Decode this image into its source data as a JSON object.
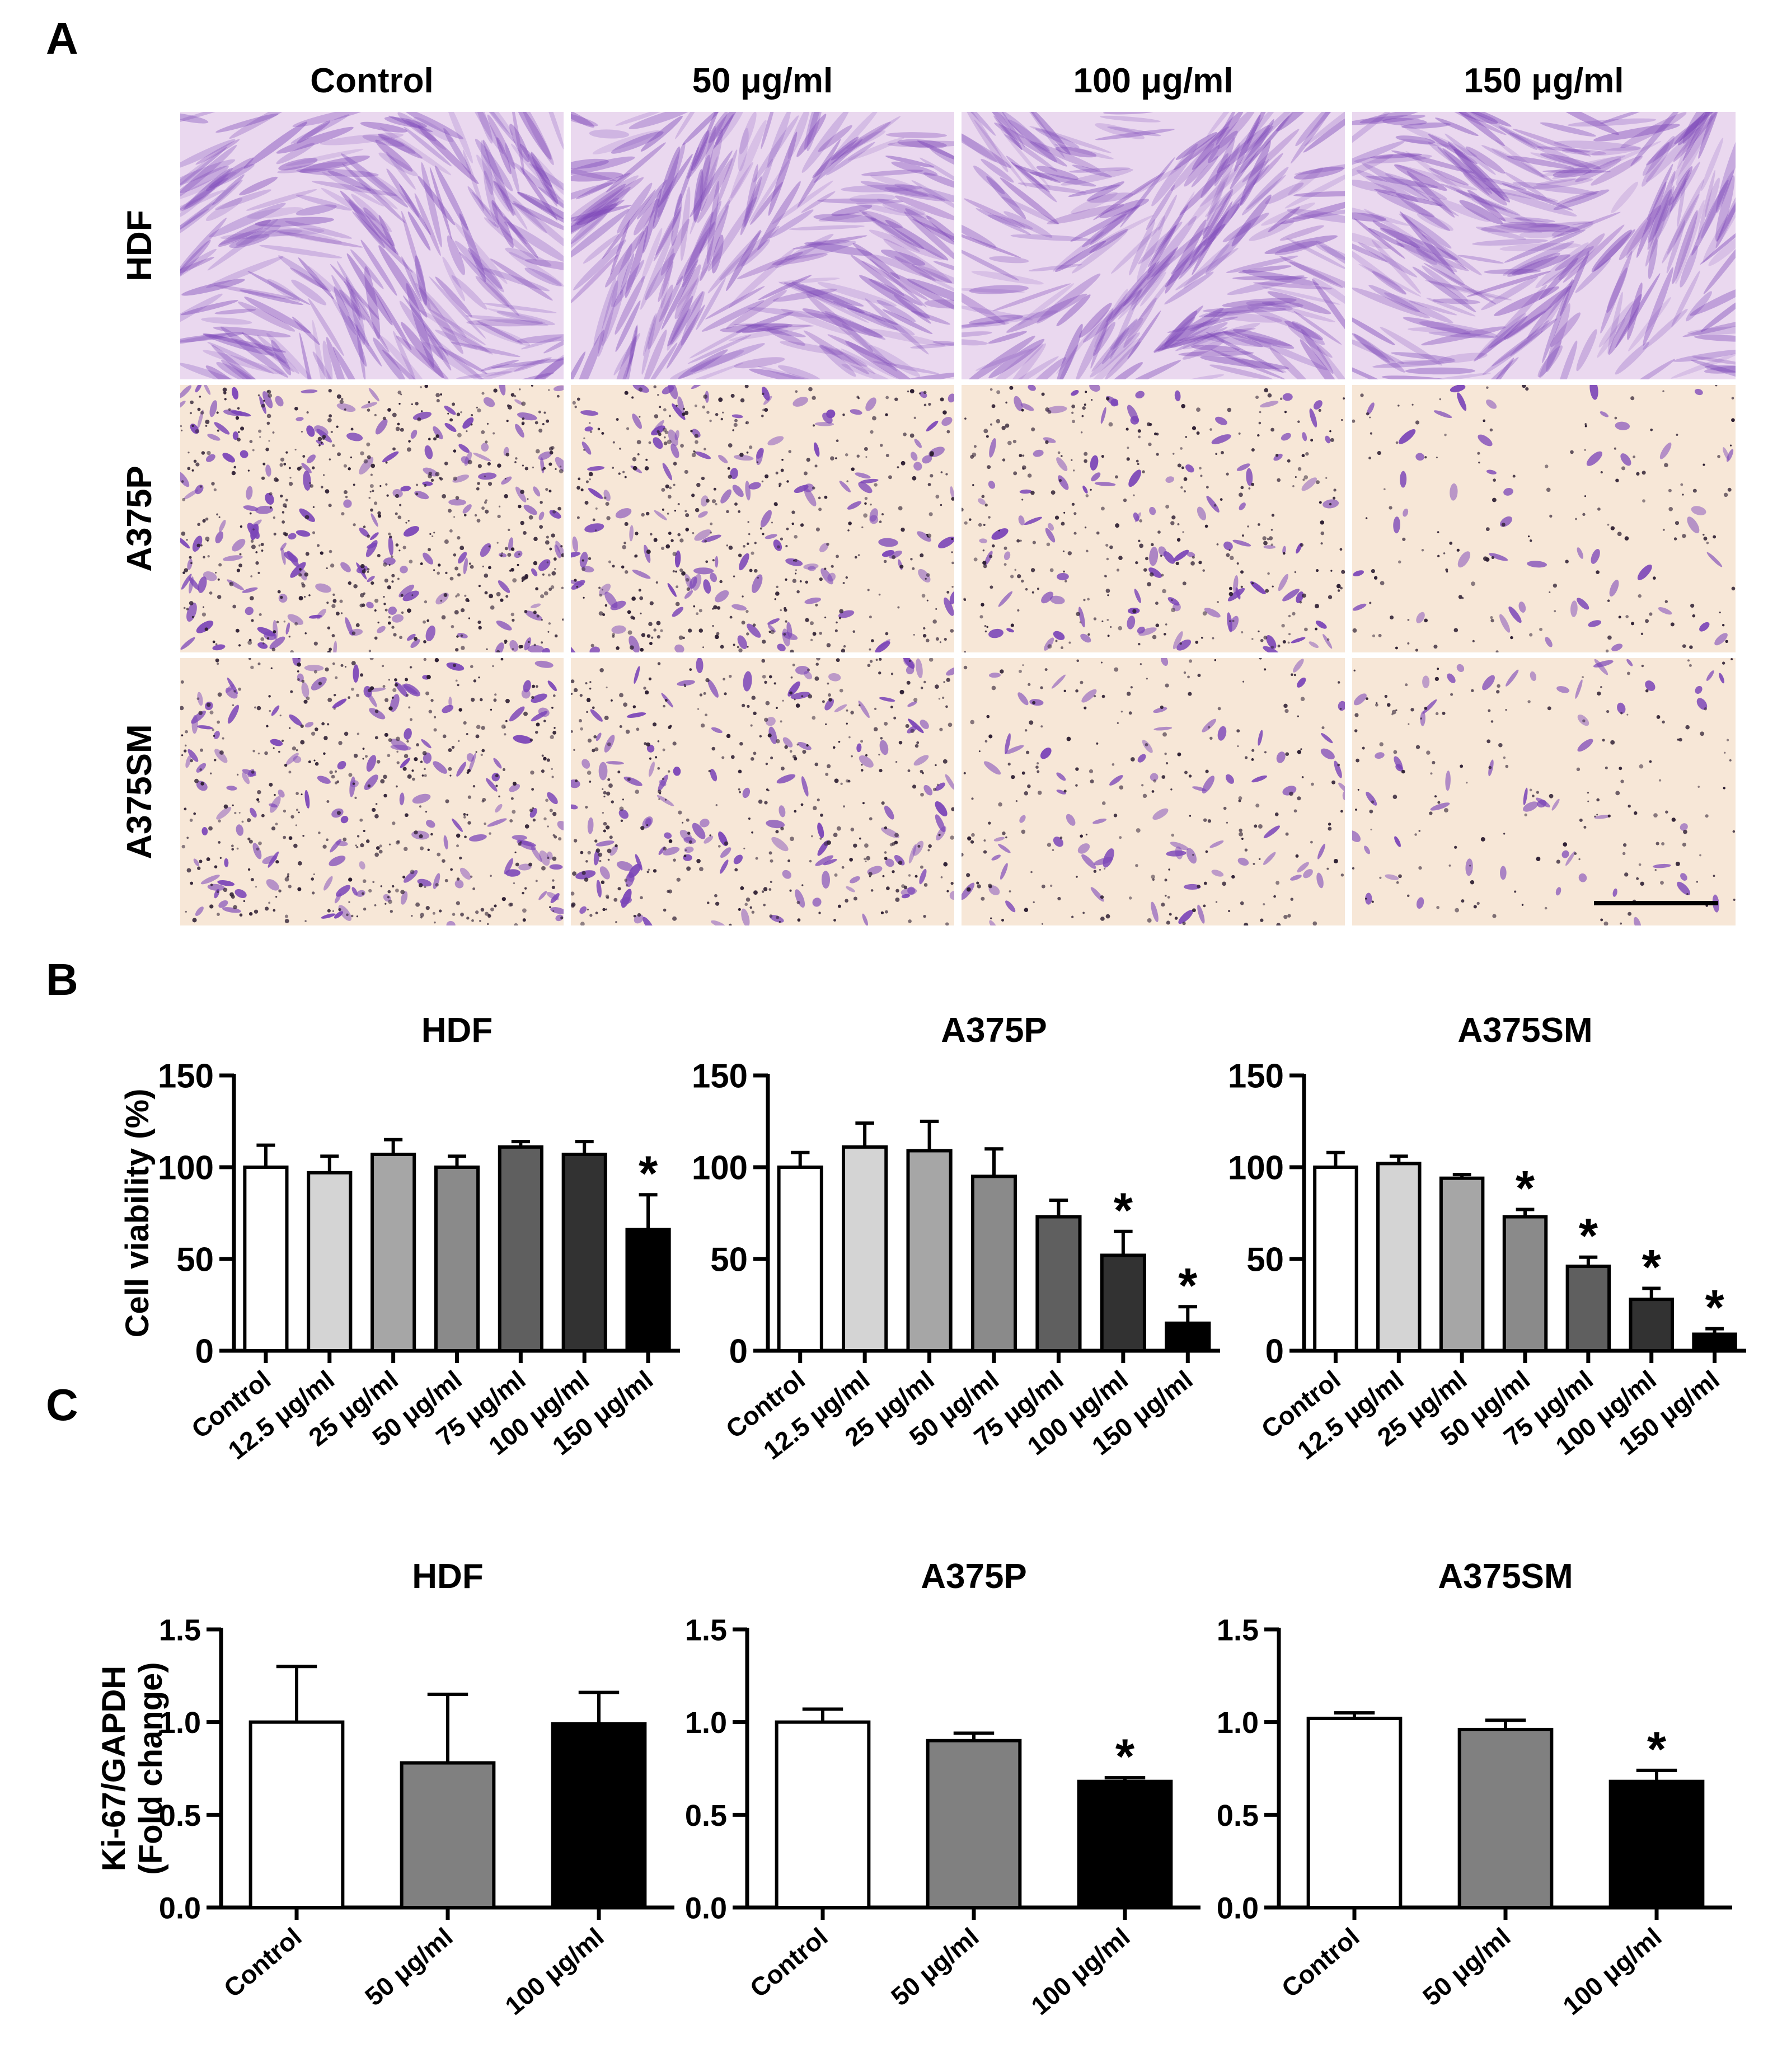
{
  "panel_labels": [
    "A",
    "B",
    "C"
  ],
  "micrographs": {
    "columns": [
      "Control",
      "50 μg/ml",
      "100 μg/ml",
      "150 μg/ml"
    ],
    "rows": [
      "HDF",
      "A375P",
      "A375SM"
    ],
    "colors": {
      "stain": "#7b45b8",
      "dark_nuclei": "#2e1f33",
      "fibro_bg": "#ead8ef",
      "melanoma_bg": "#f7e7d7"
    },
    "density": [
      [
        1.0,
        1.0,
        1.0,
        1.0
      ],
      [
        1.0,
        0.78,
        0.6,
        0.28
      ],
      [
        0.85,
        0.72,
        0.42,
        0.32
      ]
    ]
  },
  "chart_data": [
    {
      "type": "bar",
      "panel": "B",
      "title": "HDF",
      "ylabel": "Cell viability (%)",
      "xlabel": "",
      "ylim": [
        0,
        150
      ],
      "yticks": [
        "0",
        "50",
        "100",
        "150"
      ],
      "ytick_values": [
        0,
        50,
        100,
        150
      ],
      "categories": [
        "Control",
        "12.5 μg/ml",
        "25 μg/ml",
        "50 μg/ml",
        "75 μg/ml",
        "100 μg/ml",
        "150 μg/ml"
      ],
      "values": [
        100,
        97,
        107,
        100,
        111,
        107,
        66
      ],
      "errors": [
        12,
        9,
        8,
        6,
        3,
        7,
        19
      ],
      "significance": [
        "",
        "",
        "",
        "",
        "",
        "",
        "*"
      ],
      "colors": [
        "#ffffff",
        "#d4d4d4",
        "#a6a6a6",
        "#8a8a8a",
        "#5f5f5f",
        "#323232",
        "#000000"
      ]
    },
    {
      "type": "bar",
      "panel": "B",
      "title": "A375P",
      "ylabel": "",
      "xlabel": "",
      "ylim": [
        0,
        150
      ],
      "yticks": [
        "0",
        "50",
        "100",
        "150"
      ],
      "ytick_values": [
        0,
        50,
        100,
        150
      ],
      "categories": [
        "Control",
        "12.5 μg/ml",
        "25 μg/ml",
        "50 μg/ml",
        "75 μg/ml",
        "100 μg/ml",
        "150 μg/ml"
      ],
      "values": [
        100,
        111,
        109,
        95,
        73,
        52,
        15
      ],
      "errors": [
        8,
        13,
        16,
        15,
        9,
        13,
        9
      ],
      "significance": [
        "",
        "",
        "",
        "",
        "",
        "*",
        "*"
      ],
      "colors": [
        "#ffffff",
        "#d4d4d4",
        "#a6a6a6",
        "#8a8a8a",
        "#5f5f5f",
        "#323232",
        "#000000"
      ]
    },
    {
      "type": "bar",
      "panel": "B",
      "title": "A375SM",
      "ylabel": "",
      "xlabel": "",
      "ylim": [
        0,
        150
      ],
      "yticks": [
        "0",
        "50",
        "100",
        "150"
      ],
      "ytick_values": [
        0,
        50,
        100,
        150
      ],
      "categories": [
        "Control",
        "12.5 μg/ml",
        "25 μg/ml",
        "50 μg/ml",
        "75 μg/ml",
        "100 μg/ml",
        "150 μg/ml"
      ],
      "values": [
        100,
        102,
        94,
        73,
        46,
        28,
        9
      ],
      "errors": [
        8,
        4,
        2,
        4,
        5,
        6,
        3
      ],
      "significance": [
        "",
        "",
        "",
        "*",
        "*",
        "*",
        "*"
      ],
      "colors": [
        "#ffffff",
        "#d4d4d4",
        "#a6a6a6",
        "#8a8a8a",
        "#5f5f5f",
        "#323232",
        "#000000"
      ]
    },
    {
      "type": "bar",
      "panel": "C",
      "title": "HDF",
      "ylabel": "Ki-67/GAPDH\n(Fold change)",
      "xlabel": "",
      "ylim": [
        0,
        1.5
      ],
      "yticks": [
        "0.0",
        "0.5",
        "1.0",
        "1.5"
      ],
      "ytick_values": [
        0,
        0.5,
        1.0,
        1.5
      ],
      "categories": [
        "Control",
        "50 μg/ml",
        "100 μg/ml"
      ],
      "values": [
        1.0,
        0.78,
        0.99
      ],
      "errors": [
        0.3,
        0.37,
        0.17
      ],
      "significance": [
        "",
        "",
        ""
      ],
      "colors": [
        "#ffffff",
        "#808080",
        "#000000"
      ]
    },
    {
      "type": "bar",
      "panel": "C",
      "title": "A375P",
      "ylabel": "",
      "xlabel": "",
      "ylim": [
        0,
        1.5
      ],
      "yticks": [
        "0.0",
        "0.5",
        "1.0",
        "1.5"
      ],
      "ytick_values": [
        0,
        0.5,
        1.0,
        1.5
      ],
      "categories": [
        "Control",
        "50 μg/ml",
        "100 μg/ml"
      ],
      "values": [
        1.0,
        0.9,
        0.68
      ],
      "errors": [
        0.07,
        0.04,
        0.02
      ],
      "significance": [
        "",
        "",
        "*"
      ],
      "colors": [
        "#ffffff",
        "#808080",
        "#000000"
      ]
    },
    {
      "type": "bar",
      "panel": "C",
      "title": "A375SM",
      "ylabel": "",
      "xlabel": "",
      "ylim": [
        0,
        1.5
      ],
      "yticks": [
        "0.0",
        "0.5",
        "1.0",
        "1.5"
      ],
      "ytick_values": [
        0,
        0.5,
        1.0,
        1.5
      ],
      "categories": [
        "Control",
        "50 μg/ml",
        "100 μg/ml"
      ],
      "values": [
        1.02,
        0.96,
        0.68
      ],
      "errors": [
        0.03,
        0.05,
        0.06
      ],
      "significance": [
        "",
        "",
        "*"
      ],
      "colors": [
        "#ffffff",
        "#808080",
        "#000000"
      ]
    }
  ]
}
